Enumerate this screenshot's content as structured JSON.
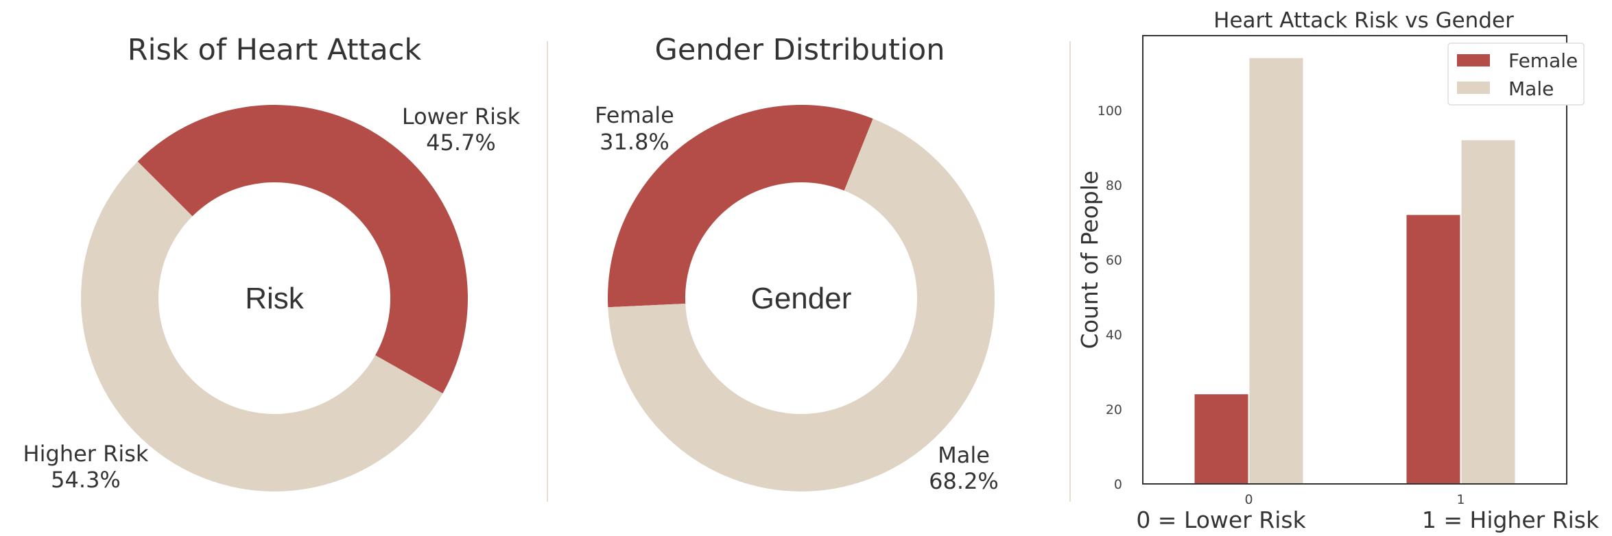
{
  "colors": {
    "female_or_lower": "#b44c47",
    "male_or_higher": "#dfd3c3",
    "divider": "#e8dfd3",
    "axis": "#333333"
  },
  "chart_data": [
    {
      "type": "pie",
      "title": "Risk of Heart Attack",
      "center_label": "Risk",
      "slices": [
        {
          "label": "Lower Risk",
          "percent": 45.7,
          "percent_text": "45.7%",
          "color": "#b44c47"
        },
        {
          "label": "Higher Risk",
          "percent": 54.3,
          "percent_text": "54.3%",
          "color": "#dfd3c3"
        }
      ]
    },
    {
      "type": "pie",
      "title": "Gender Distribution",
      "center_label": "Gender",
      "slices": [
        {
          "label": "Female",
          "percent": 31.8,
          "percent_text": "31.8%",
          "color": "#b44c47"
        },
        {
          "label": "Male",
          "percent": 68.2,
          "percent_text": "68.2%",
          "color": "#dfd3c3"
        }
      ]
    },
    {
      "type": "bar",
      "title": "Heart Attack Risk vs Gender",
      "categories": [
        "0",
        "1"
      ],
      "series": [
        {
          "name": "Female",
          "values": [
            24,
            72
          ],
          "color": "#b44c47"
        },
        {
          "name": "Male",
          "values": [
            114,
            92
          ],
          "color": "#dfd3c3"
        }
      ],
      "ylabel": "Count of People",
      "xlabel": "",
      "ylim": [
        0,
        120
      ],
      "yticks": [
        0,
        20,
        40,
        60,
        80,
        100
      ],
      "legend": "top-right",
      "grid": false,
      "footnotes": [
        "0 = Lower Risk",
        "1 = Higher Risk"
      ]
    }
  ]
}
